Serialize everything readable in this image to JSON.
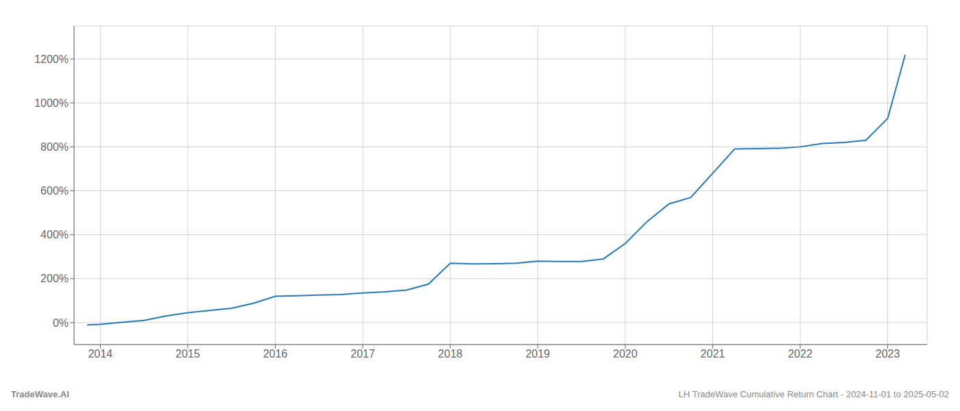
{
  "chart_data": {
    "type": "line",
    "x": [
      2013.85,
      2014.0,
      2014.2,
      2014.5,
      2014.75,
      2015.0,
      2015.25,
      2015.5,
      2015.75,
      2016.0,
      2016.25,
      2016.5,
      2016.75,
      2017.0,
      2017.25,
      2017.5,
      2017.75,
      2018.0,
      2018.25,
      2018.5,
      2018.75,
      2019.0,
      2019.25,
      2019.5,
      2019.75,
      2020.0,
      2020.25,
      2020.5,
      2020.75,
      2021.0,
      2021.25,
      2021.5,
      2021.75,
      2022.0,
      2022.25,
      2022.5,
      2022.75,
      2023.0,
      2023.2
    ],
    "values": [
      -10,
      -8,
      0,
      10,
      30,
      45,
      55,
      65,
      88,
      120,
      122,
      125,
      128,
      135,
      140,
      148,
      175,
      270,
      267,
      268,
      270,
      280,
      278,
      278,
      290,
      360,
      460,
      540,
      570,
      680,
      790,
      792,
      793,
      800,
      815,
      820,
      830,
      930,
      1220
    ],
    "color": "#2878b5",
    "xlim": [
      2013.7,
      2023.45
    ],
    "ylim": [
      -100,
      1350
    ],
    "xticks": [
      2014,
      2015,
      2016,
      2017,
      2018,
      2019,
      2020,
      2021,
      2022,
      2023
    ],
    "yticks": [
      {
        "value": 0,
        "label": "0%"
      },
      {
        "value": 200,
        "label": "200%"
      },
      {
        "value": 400,
        "label": "400%"
      },
      {
        "value": 600,
        "label": "600%"
      },
      {
        "value": 800,
        "label": "800%"
      },
      {
        "value": 1000,
        "label": "1000%"
      },
      {
        "value": 1200,
        "label": "1200%"
      }
    ],
    "grid": true,
    "annotations": [
      "TradeWave.AI",
      "LH TradeWave Cumulative Return Chart - 2024-11-01 to 2025-05-02"
    ]
  }
}
